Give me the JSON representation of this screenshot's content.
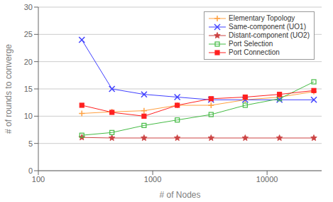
{
  "chart_data": {
    "type": "line",
    "xlabel": "# of Nodes",
    "ylabel": "# of rounds to converge",
    "log": "x",
    "xlim": [
      100,
      30000
    ],
    "xticks": [
      100,
      1000,
      10000
    ],
    "ylim": [
      0,
      30
    ],
    "yticks": [
      0,
      5,
      10,
      15,
      20,
      25,
      30
    ],
    "grid": true,
    "legend": "upper right",
    "x": [
      240,
      440,
      840,
      1640,
      3240,
      6440,
      12840,
      25640
    ],
    "series": [
      {
        "name": "Elementary Topology",
        "color": "#FFA040",
        "marker": "plus",
        "values": [
          10.5,
          10.8,
          11.0,
          12.0,
          12.0,
          13.0,
          13.5,
          14.5
        ]
      },
      {
        "name": "Same-component (UO1)",
        "color": "#4040FF",
        "marker": "cross",
        "values": [
          24.0,
          15.0,
          14.0,
          13.5,
          13.0,
          13.0,
          13.0,
          13.0
        ]
      },
      {
        "name": "Distant-component (UO2)",
        "color": "#CC4444",
        "marker": "star",
        "values": [
          6.1,
          6.0,
          6.0,
          6.0,
          6.0,
          6.0,
          6.0,
          6.0
        ]
      },
      {
        "name": "Port Selection",
        "color": "#44BB44",
        "marker": "square_open",
        "values": [
          6.5,
          7.0,
          8.3,
          9.3,
          10.3,
          12.0,
          13.2,
          16.3
        ]
      },
      {
        "name": "Port Connection",
        "color": "#FF2020",
        "marker": "square",
        "values": [
          12.0,
          10.7,
          10.0,
          12.0,
          13.2,
          13.5,
          14.0,
          14.7
        ]
      }
    ]
  }
}
